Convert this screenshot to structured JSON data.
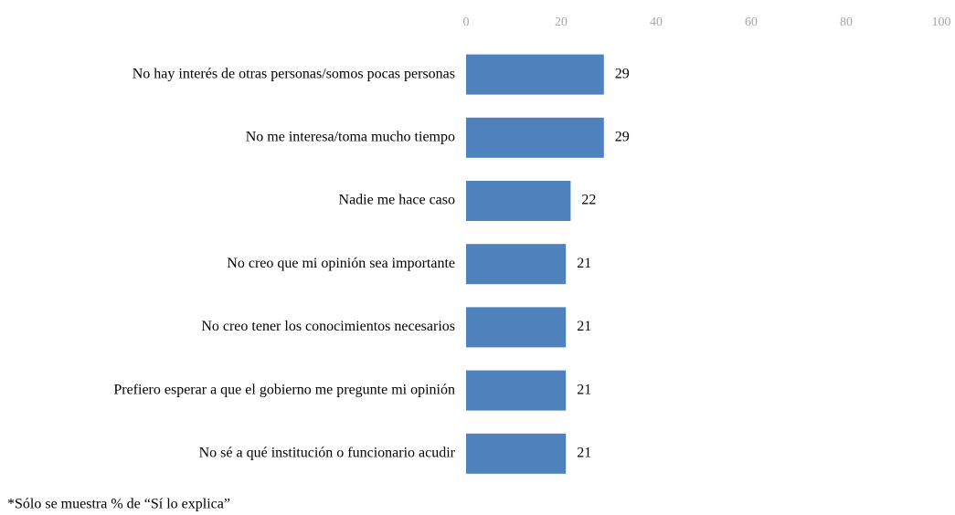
{
  "chart_data": {
    "type": "barh",
    "categories": [
      "No hay interés de otras personas/somos pocas personas",
      "No me interesa/toma mucho tiempo",
      "Nadie me hace caso",
      "No creo que mi opinión sea importante",
      "No creo tener los conocimientos necesarios",
      "Prefiero esperar a que el gobierno me pregunte mi opinión",
      "No sé a qué institución o funcionario acudir"
    ],
    "values": [
      29,
      29,
      22,
      21,
      21,
      21,
      21
    ],
    "color": "#4f81bd",
    "xlim": [
      0,
      100
    ],
    "xticks": [
      0,
      20,
      40,
      60,
      80,
      100
    ],
    "grid": false,
    "note": "*Sólo se muestra % de “Sí lo explica”"
  }
}
